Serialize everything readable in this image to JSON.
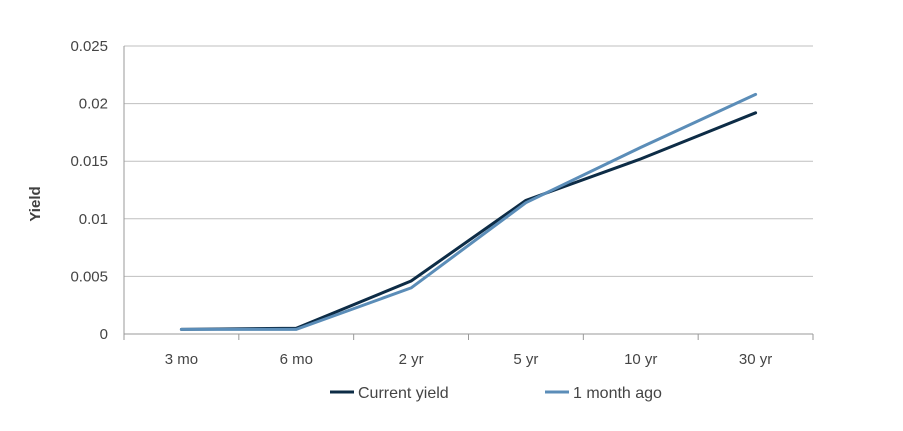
{
  "chart_data": {
    "type": "line",
    "title": "",
    "xlabel": "",
    "ylabel": "Yield",
    "categories": [
      "3 mo",
      "6 mo",
      "2 yr",
      "5 yr",
      "10 yr",
      "30 yr"
    ],
    "ylim": [
      0,
      0.025
    ],
    "yticks": [
      "0",
      "0.005",
      "0.01",
      "0.015",
      "0.02",
      "0.025"
    ],
    "ytick_values": [
      0,
      0.005,
      0.01,
      0.015,
      0.02,
      0.025
    ],
    "grid": "horizontal",
    "legend_position": "bottom",
    "series": [
      {
        "name": "Current yield",
        "color": "#0d2c46",
        "values": [
          0.0004,
          0.0005,
          0.0046,
          0.0116,
          0.0152,
          0.0192
        ]
      },
      {
        "name": "1 month ago",
        "color": "#5b8db8",
        "values": [
          0.0004,
          0.0004,
          0.004,
          0.0114,
          0.0162,
          0.0208
        ]
      }
    ]
  }
}
